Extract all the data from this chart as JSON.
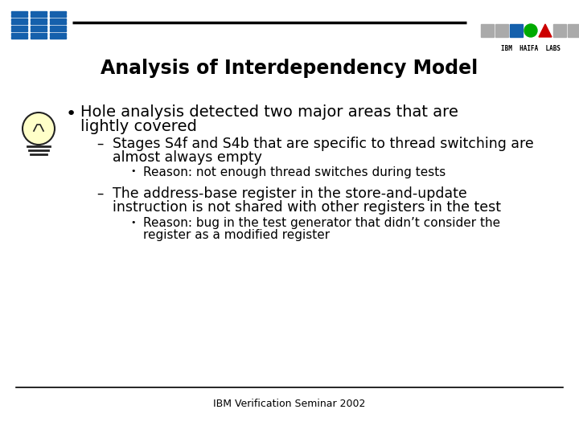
{
  "title": "Analysis of Interdependency Model",
  "footer": "IBM Verification Seminar 2002",
  "bg_color": "#ffffff",
  "title_color": "#000000",
  "text_color": "#000000",
  "bullet1_line1": "Hole analysis detected two major areas that are",
  "bullet1_line2": "lightly covered",
  "sub1_line1": "Stages S4f and S4b that are specific to thread switching are",
  "sub1_line2": "almost always empty",
  "sub1_reason": "Reason: not enough thread switches during tests",
  "sub2_line1": "The address-base register in the store-and-update",
  "sub2_line2": "instruction is not shared with other registers in the test",
  "sub2_reason_line1": "Reason: bug in the test generator that didn’t consider the",
  "sub2_reason_line2": "register as a modified register",
  "ibm_blue": "#1560AC",
  "ibm_gray": "#aaaaaa",
  "ibm_green": "#00aa00",
  "ibm_red": "#cc0000",
  "header_line_color": "#000000",
  "footer_line_color": "#000000",
  "bulb_fill": "#FFFFC8",
  "bulb_edge": "#222222"
}
